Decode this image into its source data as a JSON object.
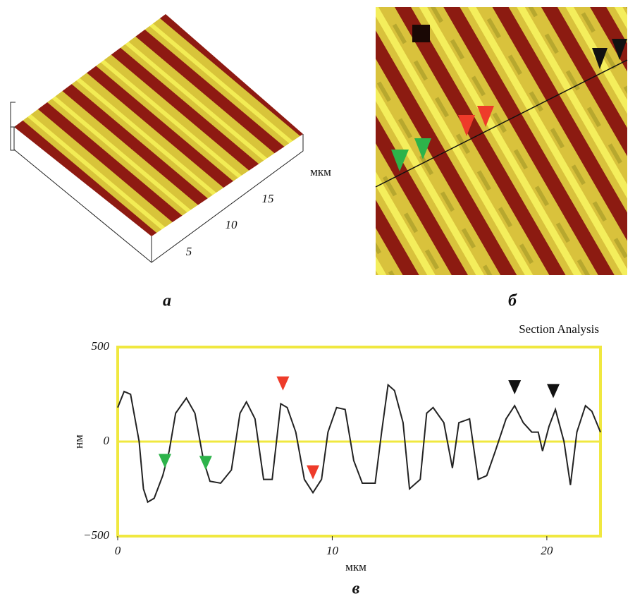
{
  "panel_a": {
    "label": "а",
    "axis_unit": "мкм",
    "ticks": [
      "5",
      "10",
      "15"
    ]
  },
  "panel_b": {
    "label": "б"
  },
  "chart_data": {
    "type": "line",
    "title": "Section Analysis",
    "caption": "в",
    "x_label": "мкм",
    "y_label": "нм",
    "xlim": [
      0,
      22.5
    ],
    "ylim": [
      -500,
      500
    ],
    "xticks": [
      0,
      10,
      20
    ],
    "yticks": [
      {
        "value": -500,
        "label": "−500"
      },
      0,
      500
    ],
    "grid": true,
    "grid_color": "#f0e840",
    "color": "#222222",
    "x": [
      0,
      0.3,
      0.6,
      1.0,
      1.2,
      1.4,
      1.7,
      2.1,
      2.4,
      2.7,
      3.2,
      3.6,
      4.0,
      4.3,
      4.8,
      5.3,
      5.7,
      6.0,
      6.4,
      6.8,
      7.2,
      7.6,
      7.9,
      8.3,
      8.7,
      9.1,
      9.5,
      9.8,
      10.2,
      10.6,
      11.0,
      11.4,
      12.0,
      12.3,
      12.6,
      12.9,
      13.3,
      13.6,
      14.1,
      14.4,
      14.7,
      15.2,
      15.6,
      15.9,
      16.4,
      16.8,
      17.2,
      17.6,
      18.1,
      18.5,
      18.9,
      19.3,
      19.6,
      19.8,
      20.1,
      20.4,
      20.8,
      21.1,
      21.4,
      21.8,
      22.1,
      22.5
    ],
    "values": [
      180,
      265,
      250,
      0,
      -250,
      -320,
      -300,
      -180,
      -50,
      150,
      230,
      150,
      -100,
      -210,
      -220,
      -150,
      150,
      210,
      120,
      -200,
      -200,
      200,
      180,
      50,
      -200,
      -270,
      -200,
      50,
      180,
      170,
      -100,
      -220,
      -220,
      50,
      300,
      270,
      100,
      -250,
      -200,
      150,
      180,
      100,
      -140,
      100,
      120,
      -200,
      -180,
      -50,
      120,
      190,
      100,
      50,
      50,
      -50,
      80,
      170,
      0,
      -230,
      50,
      190,
      160,
      50
    ],
    "markers": [
      {
        "x": 2.2,
        "y": -140,
        "color": "#2db34a"
      },
      {
        "x": 4.1,
        "y": -150,
        "color": "#2db34a"
      },
      {
        "x": 7.7,
        "y": 270,
        "color": "#ee3b2a"
      },
      {
        "x": 9.1,
        "y": -200,
        "color": "#ee3b2a"
      },
      {
        "x": 18.5,
        "y": 250,
        "color": "#111111"
      },
      {
        "x": 20.3,
        "y": 230,
        "color": "#111111"
      }
    ]
  }
}
